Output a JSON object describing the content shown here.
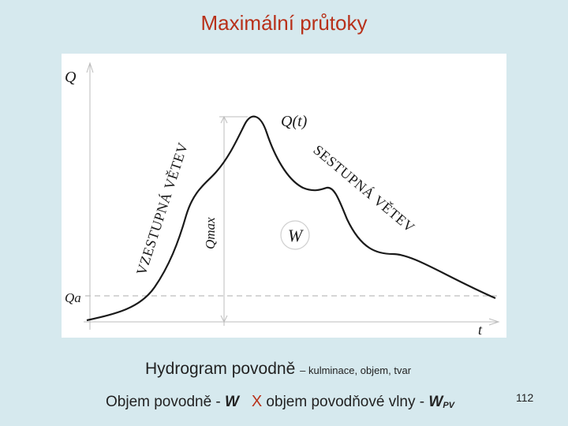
{
  "title": "Maximální průtoky",
  "diagram": {
    "y_axis_label": "Q",
    "x_axis_label": "t",
    "base_flow_label": "Qa",
    "curve_label": "Q(t)",
    "peak_label": "Qmax",
    "volume_label": "W",
    "rising_limb_label": "VZESTUPNÁ VĚTEV",
    "falling_limb_label": "SESTUPNÁ VĚTEV"
  },
  "caption": {
    "main": "Hydrogram povodně",
    "sub": "– kulminace, objem, tvar"
  },
  "footer": {
    "part1": "Objem povodně - ",
    "w_symbol": "W",
    "x_symbol": "X",
    "part2": " objem povodňové vlny - ",
    "wpv_symbol": "W",
    "wpv_sub": "PV"
  },
  "page_number": "112",
  "colors": {
    "background": "#d6e9ee",
    "title": "#b8311a",
    "curve": "#1a1a1a"
  }
}
